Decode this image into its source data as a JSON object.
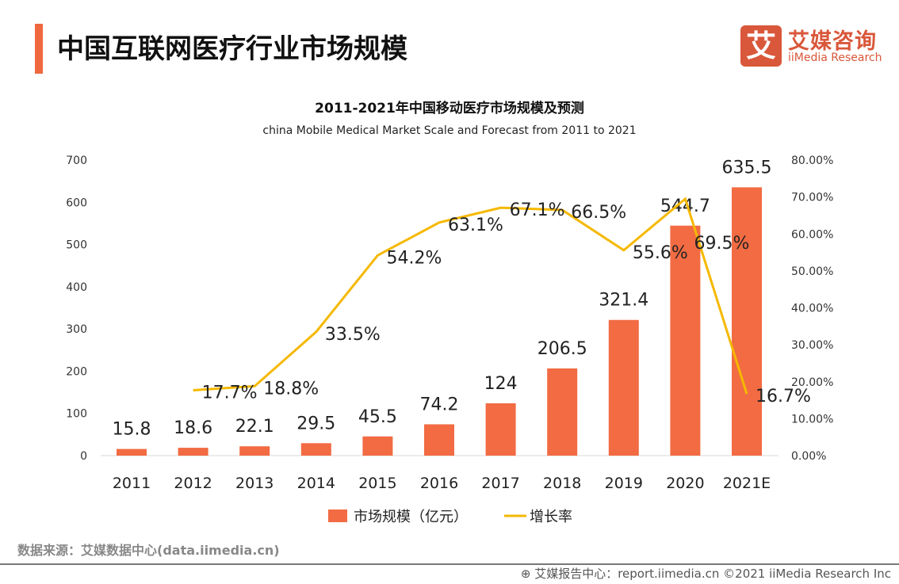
{
  "header": {
    "title": "中国互联网医疗行业市场规模",
    "logo_cn": "艾媒咨询",
    "logo_en": "iiMedia Research",
    "logo_mark": "艾"
  },
  "colors": {
    "bar": "#f26b43",
    "line": "#f5b800",
    "accent": "#f0683f",
    "brand": "#d9573a"
  },
  "chart_data": {
    "type": "bar+line",
    "title": "2011-2021年中国移动医疗市场规模及预测",
    "subtitle": "china Mobile Medical Market Scale and Forecast from 2011 to 2021",
    "categories": [
      "2011",
      "2012",
      "2013",
      "2014",
      "2015",
      "2016",
      "2017",
      "2018",
      "2019",
      "2020",
      "2021E"
    ],
    "series": [
      {
        "name": "市场规模（亿元）",
        "type": "bar",
        "axis": "left",
        "values": [
          15.8,
          18.6,
          22.1,
          29.5,
          45.5,
          74.2,
          124,
          206.5,
          321.4,
          544.7,
          635.5
        ],
        "labels": [
          "15.8",
          "18.6",
          "22.1",
          "29.5",
          "45.5",
          "74.2",
          "124",
          "206.5",
          "321.4",
          "544.7",
          "635.5"
        ]
      },
      {
        "name": "增长率",
        "type": "line",
        "axis": "right",
        "values": [
          null,
          17.7,
          18.8,
          33.5,
          54.2,
          63.1,
          67.1,
          66.5,
          55.6,
          69.5,
          16.7
        ],
        "labels": [
          "",
          "17.7%",
          "18.8%",
          "33.5%",
          "54.2%",
          "63.1%",
          "67.1%",
          "66.5%",
          "55.6%",
          "69.5%",
          "16.7%"
        ]
      }
    ],
    "y_left": {
      "range": [
        0,
        700
      ],
      "ticks": [
        "0",
        "100",
        "200",
        "300",
        "400",
        "500",
        "600",
        "700"
      ]
    },
    "y_right": {
      "range": [
        0,
        80
      ],
      "ticks": [
        "0.00%",
        "10.00%",
        "20.00%",
        "30.00%",
        "40.00%",
        "50.00%",
        "60.00%",
        "70.00%",
        "80.00%"
      ]
    },
    "grid": false,
    "legend": "bottom"
  },
  "footer": {
    "source": "数据来源：艾媒数据中心(data.iimedia.cn)",
    "report": "艾媒报告中心：report.iimedia.cn   ©2021  iiMedia Research  Inc"
  }
}
